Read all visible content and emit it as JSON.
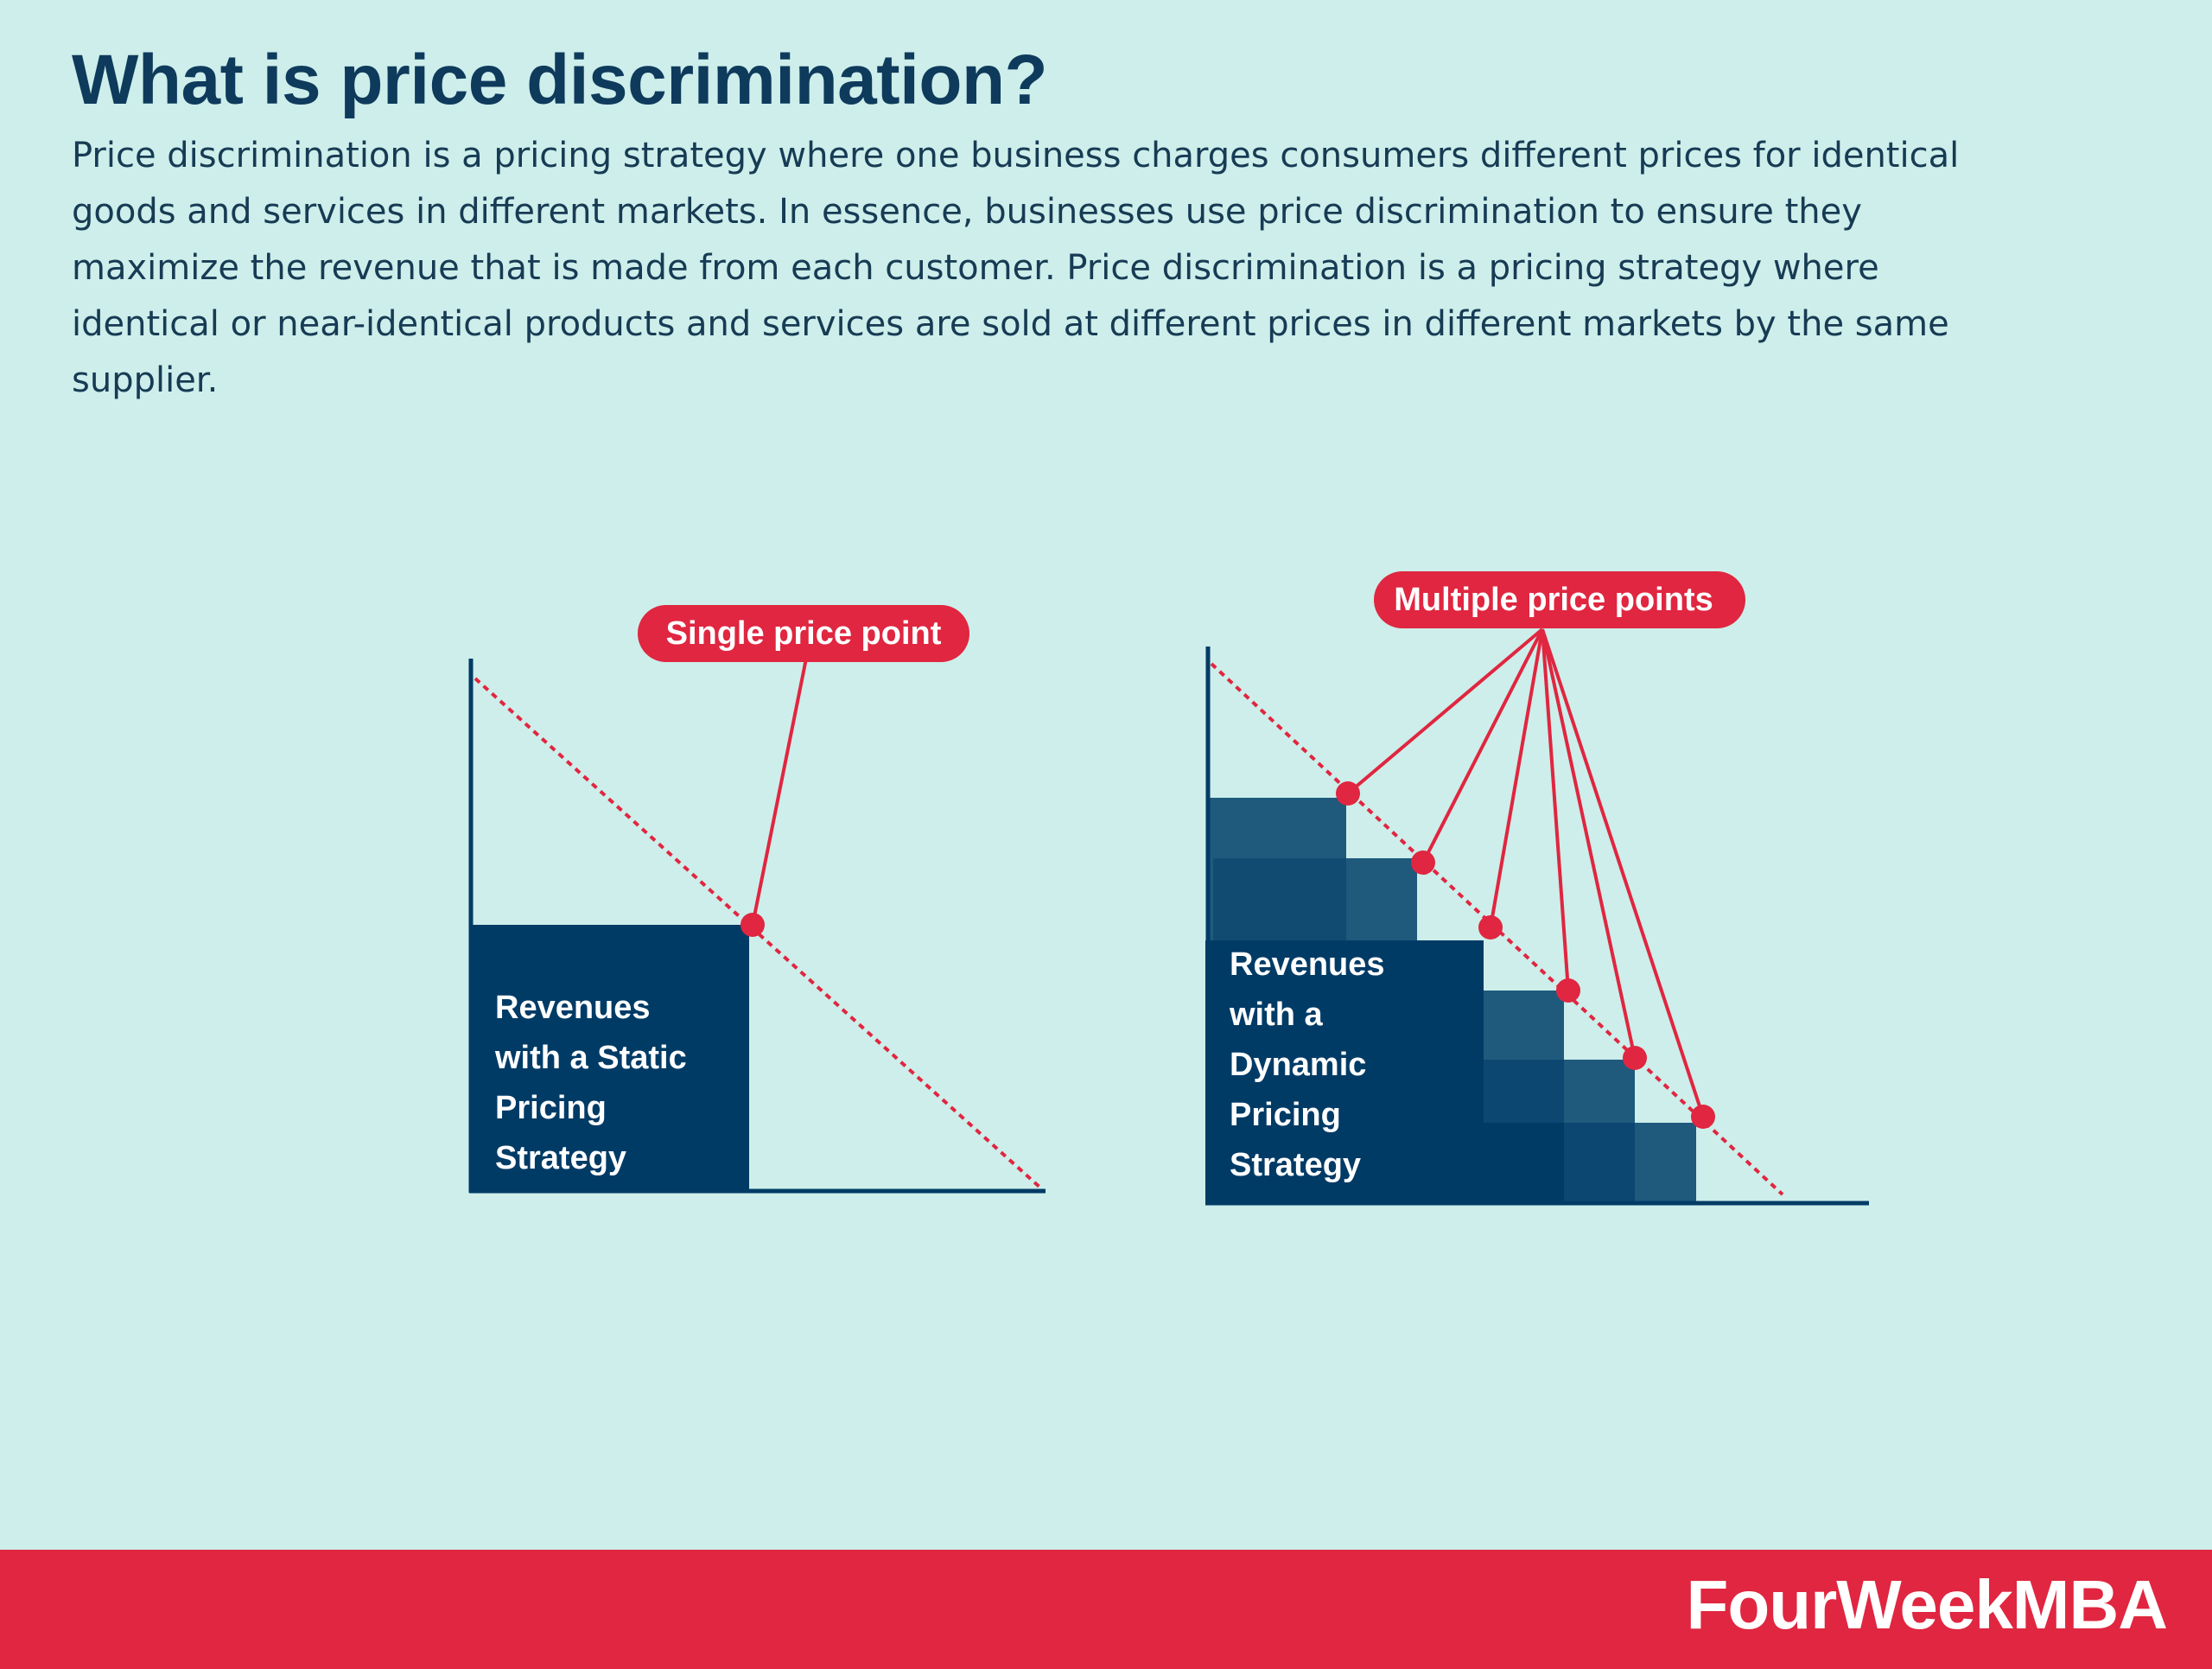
{
  "title": "What is price discrimination?",
  "description": "Price discrimination is a pricing strategy where one business charges consumers different prices for identical goods and services in different markets. In essence, businesses use price discrimination to ensure they maximize the revenue that is made from each customer. Price discrimination is a pricing strategy where identical or near-identical products and services are sold at different prices in different markets by the same supplier.",
  "static_diagram": {
    "callout": "Single price point",
    "box_lines": [
      "Revenues",
      "with a Static",
      "Pricing",
      "Strategy"
    ]
  },
  "dynamic_diagram": {
    "callout": "Multiple price points",
    "box_lines": [
      "Revenues",
      "with a",
      "Dynamic",
      "Pricing",
      "Strategy"
    ]
  },
  "colors": {
    "background": "#cdeeea",
    "navy": "#003b66",
    "step_blue": "#1f5a7d",
    "accent_red": "#e02640"
  },
  "footer": {
    "brand": "FourWeekMBA"
  }
}
